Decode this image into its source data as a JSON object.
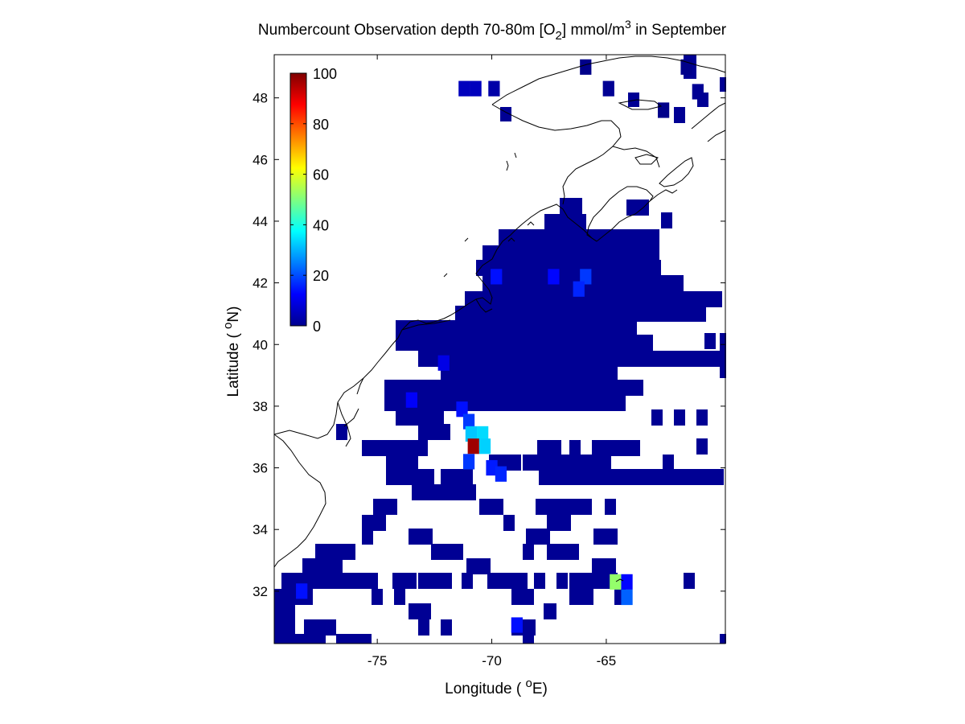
{
  "figure": {
    "title_main": "Numbercount Observation depth 70-80m [O",
    "title_sub": "2",
    "title_rest": "] mmol/m",
    "title_sup": "3",
    "title_end": " in September",
    "xlabel_pre": "Longitude ( ",
    "xlabel_sup": "o",
    "xlabel_post": "E)",
    "ylabel_pre": "Latitude ( ",
    "ylabel_sup": "o",
    "ylabel_post": "N)"
  },
  "chart_data": {
    "type": "heatmap",
    "subject": "Gridded observation counts of dissolved oxygen at 70-80 m depth, September, Northwest Atlantic",
    "xlim": [
      -79.5,
      -59.8
    ],
    "ylim": [
      30.3,
      49.4
    ],
    "cell_size_deg": 1,
    "x_ticks": [
      -75,
      -70,
      -65
    ],
    "x_tick_labels": [
      "-75",
      "-70",
      "-65"
    ],
    "y_ticks": [
      32,
      34,
      36,
      38,
      40,
      42,
      44,
      46,
      48
    ],
    "y_tick_labels": [
      "32",
      "34",
      "36",
      "38",
      "40",
      "42",
      "44",
      "46",
      "48"
    ],
    "colorbar": {
      "range": [
        0,
        100
      ],
      "ticks": [
        0,
        20,
        40,
        60,
        80,
        100
      ],
      "tick_labels": [
        "0",
        "20",
        "40",
        "60",
        "80",
        "100"
      ],
      "colormap": "jet"
    },
    "grid": false,
    "coastline": "black outline of the North American east coast from Cape Hatteras to the Gulf of St. Lawrence",
    "cells": [
      {
        "lon": -65.9,
        "lat": 49.0,
        "value": 1
      },
      {
        "lon": -61.5,
        "lat": 49.0,
        "value": 1
      },
      {
        "lon": -61.0,
        "lat": 48.2,
        "value": 2
      },
      {
        "lon": -71.2,
        "lat": 48.3,
        "value": 6
      },
      {
        "lon": -70.7,
        "lat": 48.3,
        "value": 6
      },
      {
        "lon": -69.9,
        "lat": 48.3,
        "value": 4
      },
      {
        "lon": -64.9,
        "lat": 48.3,
        "value": 2
      },
      {
        "lon": -62.5,
        "lat": 47.6,
        "value": 1
      },
      {
        "lon": -69.8,
        "lat": 42.2,
        "value": 14
      },
      {
        "lon": -67.3,
        "lat": 42.2,
        "value": 13
      },
      {
        "lon": -65.9,
        "lat": 42.2,
        "value": 18
      },
      {
        "lon": -66.2,
        "lat": 41.8,
        "value": 16
      },
      {
        "lon": -72.1,
        "lat": 39.4,
        "value": 10
      },
      {
        "lon": -73.5,
        "lat": 38.2,
        "value": 12
      },
      {
        "lon": -71.3,
        "lat": 37.9,
        "value": 14
      },
      {
        "lon": -71.0,
        "lat": 37.5,
        "value": 18
      },
      {
        "lon": -70.9,
        "lat": 37.1,
        "value": 32
      },
      {
        "lon": -70.4,
        "lat": 37.1,
        "value": 34
      },
      {
        "lon": -70.8,
        "lat": 36.7,
        "value": 97
      },
      {
        "lon": -70.3,
        "lat": 36.7,
        "value": 33
      },
      {
        "lon": -71.0,
        "lat": 36.2,
        "value": 18
      },
      {
        "lon": -70.0,
        "lat": 36.0,
        "value": 15
      },
      {
        "lon": -69.6,
        "lat": 35.8,
        "value": 16
      },
      {
        "lon": -68.9,
        "lat": 30.9,
        "value": 14
      },
      {
        "lon": -78.3,
        "lat": 32.0,
        "value": 14
      },
      {
        "lon": -64.6,
        "lat": 32.3,
        "value": 52
      },
      {
        "lon": -64.1,
        "lat": 32.3,
        "value": 13
      },
      {
        "lon": -64.1,
        "lat": 31.8,
        "value": 22
      }
    ],
    "background_cell_value": 2,
    "note_cells": "Remaining occupied cells across the shelf and slope carry low counts of 0-10 (dark blue)."
  }
}
